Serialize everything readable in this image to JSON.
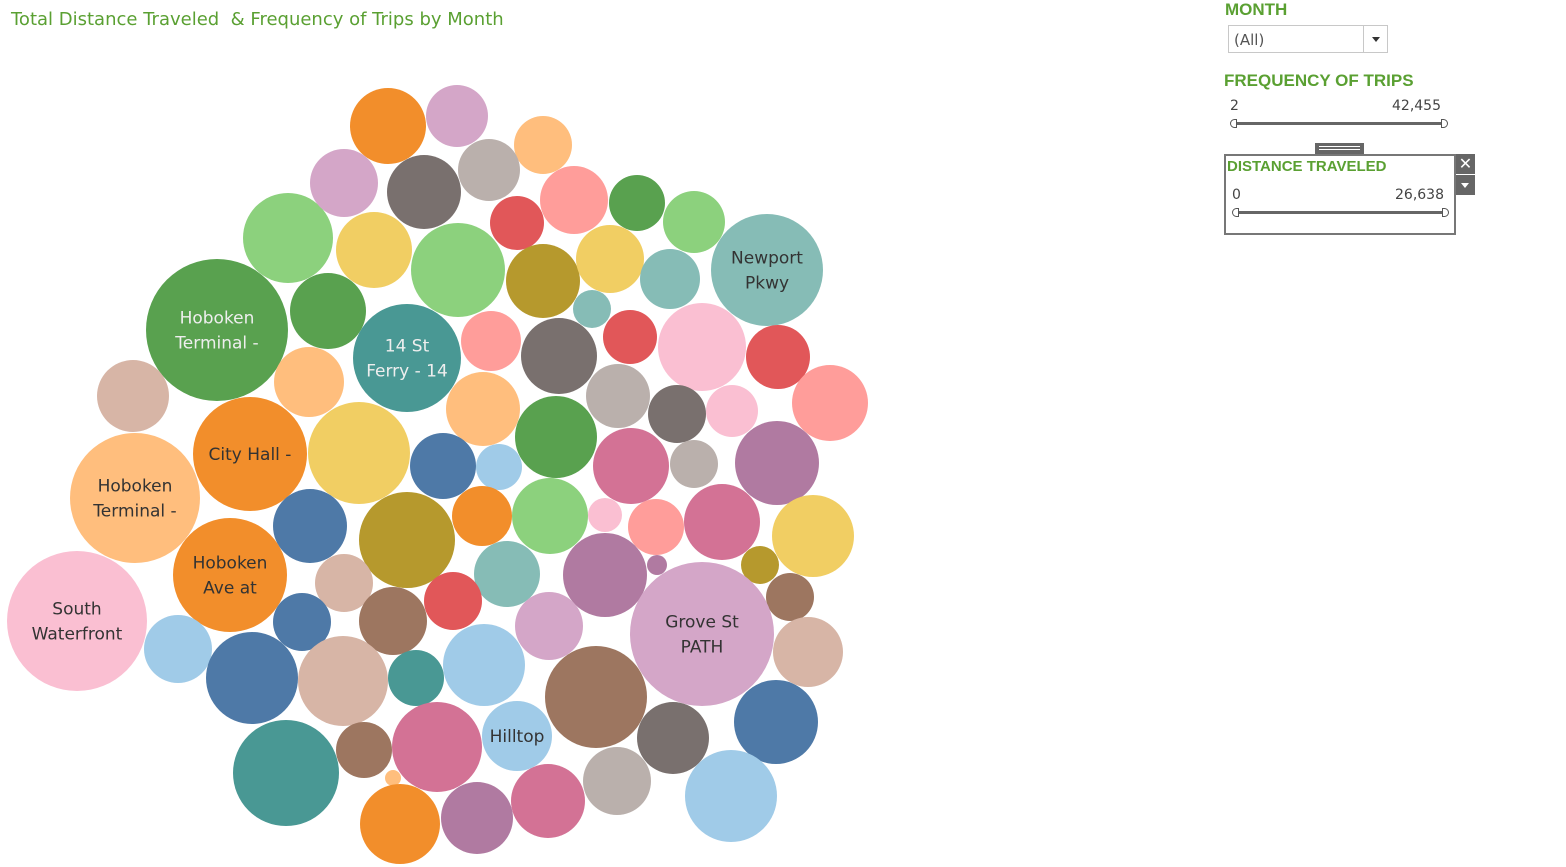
{
  "title": "Total Distance Traveled  & Frequency of Trips by Month",
  "filters": {
    "month": {
      "title": "MONTH",
      "value": "(All)"
    },
    "frequency": {
      "title": "FREQUENCY OF TRIPS",
      "min": "2",
      "max": "42,455"
    },
    "distance": {
      "title": "DISTANCE TRAVELED",
      "min": "0",
      "max": "26,638"
    }
  },
  "colors": {
    "accent": "#5aa032",
    "palette": [
      "#f28e2b",
      "#d4a6c8",
      "#ffbe7d",
      "#8cd17d",
      "#79706e",
      "#bab0ac",
      "#ff9d9a",
      "#59a14f",
      "#e15759",
      "#f1ce63",
      "#b6992d",
      "#86bcb6",
      "#499894",
      "#fabfd2",
      "#4e79a7",
      "#a0cbe8",
      "#d37295",
      "#b07aa1",
      "#9d7660",
      "#d7b5a6"
    ]
  },
  "chart_data": {
    "type": "bubble",
    "title": "Total Distance Traveled  & Frequency of Trips by Month",
    "labeled_bubbles": [
      {
        "label": "Grove St PATH",
        "label_lines": [
          "Grove St",
          "PATH"
        ]
      },
      {
        "label": "South Waterfront",
        "label_lines": [
          "South",
          "Waterfront"
        ]
      },
      {
        "label": "Hoboken Terminal -",
        "label_lines": [
          "Hoboken",
          "Terminal -"
        ]
      },
      {
        "label": "Hoboken Terminal -",
        "label_lines": [
          "Hoboken",
          "Terminal -"
        ]
      },
      {
        "label": "14 St Ferry - 14",
        "label_lines": [
          "14 St",
          "Ferry - 14"
        ]
      },
      {
        "label": "City Hall -",
        "label_lines": [
          "City Hall -"
        ]
      },
      {
        "label": "Hoboken Ave at",
        "label_lines": [
          "Hoboken",
          "Ave at"
        ]
      },
      {
        "label": "Newport Pkwy",
        "label_lines": [
          "Newport",
          "Pkwy"
        ]
      },
      {
        "label": "Hilltop",
        "label_lines": [
          "Hilltop"
        ]
      }
    ],
    "bubble_count": 90
  }
}
